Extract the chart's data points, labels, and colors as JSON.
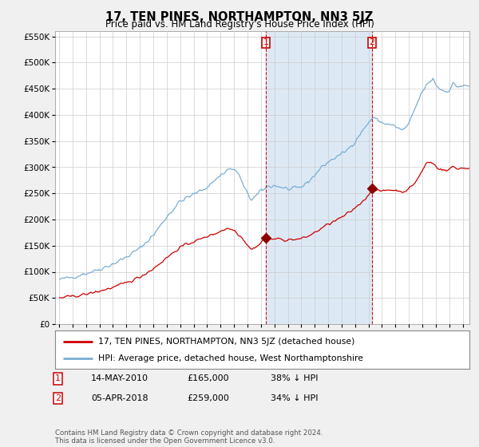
{
  "title": "17, TEN PINES, NORTHAMPTON, NN3 5JZ",
  "subtitle": "Price paid vs. HM Land Registry's House Price Index (HPI)",
  "legend_line1": "17, TEN PINES, NORTHAMPTON, NN3 5JZ (detached house)",
  "legend_line2": "HPI: Average price, detached house, West Northamptonshire",
  "footnote": "Contains HM Land Registry data © Crown copyright and database right 2024.\nThis data is licensed under the Open Government Licence v3.0.",
  "sale1_label": "1",
  "sale1_date": "14-MAY-2010",
  "sale1_price": "£165,000",
  "sale1_hpi": "38% ↓ HPI",
  "sale2_label": "2",
  "sale2_date": "05-APR-2018",
  "sale2_price": "£259,000",
  "sale2_hpi": "34% ↓ HPI",
  "sale1_x": 2010.37,
  "sale1_y": 165000,
  "sale2_x": 2018.26,
  "sale2_y": 259000,
  "red_line_color": "#cc0000",
  "blue_line_color": "#7aadd4",
  "shade_color": "#dce9f5",
  "sale_marker_color": "#8B0000",
  "dashed_line_color": "#cc0000",
  "background_color": "#f0f0f0",
  "plot_bg_color": "#ffffff",
  "grid_color": "#cccccc",
  "ylim": [
    0,
    560000
  ],
  "xlim_start": 1994.7,
  "xlim_end": 2025.5
}
